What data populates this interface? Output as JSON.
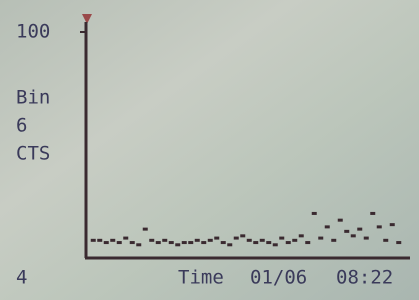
{
  "chart_data": {
    "type": "dots",
    "ylim": [
      0,
      100
    ],
    "yticks": [
      100
    ],
    "ylabel": [
      "Bin",
      "6",
      "CTS"
    ],
    "corner_label": "4",
    "xlabel": "Time",
    "date": "01/06",
    "time": "08:22",
    "color": "#3a2a30",
    "values": [
      7,
      7,
      6,
      7,
      6,
      8,
      6,
      5,
      12,
      7,
      6,
      7,
      6,
      5,
      6,
      6,
      7,
      6,
      7,
      8,
      6,
      5,
      8,
      9,
      7,
      6,
      7,
      6,
      5,
      8,
      6,
      7,
      9,
      6,
      19,
      8,
      13,
      7,
      16,
      11,
      9,
      12,
      8,
      19,
      13,
      7,
      14,
      6
    ]
  }
}
